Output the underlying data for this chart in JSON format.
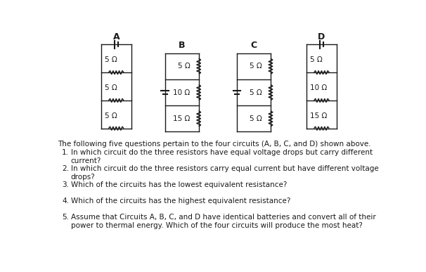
{
  "circuits": [
    {
      "label": "A",
      "type": "series_left",
      "resistors": [
        "5 Ω",
        "5 Ω",
        "5 Ω"
      ]
    },
    {
      "label": "B",
      "type": "parallel_right",
      "resistors": [
        "5 Ω",
        "10 Ω",
        "15 Ω"
      ]
    },
    {
      "label": "C",
      "type": "parallel_right",
      "resistors": [
        "5 Ω",
        "5 Ω",
        "5 Ω"
      ]
    },
    {
      "label": "D",
      "type": "series_right",
      "resistors": [
        "5 Ω",
        "10 Ω",
        "15 Ω"
      ]
    }
  ],
  "questions": [
    "The following five questions pertain to the four circuits (A, B, C, and D) shown above.",
    "In which circuit do the three resistors have equal voltage drops but carry different\ncurrent?",
    "In which circuit do the three resistors carry equal current but have different voltage\ndrops?",
    "Which of the circuits has the lowest equivalent resistance?",
    "Which of the circuits has the highest equivalent resistance?",
    "Assume that Circuits A, B, C, and D have identical batteries and convert all of their\npower to thermal energy. Which of the four circuits will produce the most heat?"
  ],
  "bg_color": "#ffffff",
  "line_color": "#1a1a1a",
  "text_color": "#1a1a1a",
  "fig_w": 6.06,
  "fig_h": 3.87,
  "dpi": 100
}
